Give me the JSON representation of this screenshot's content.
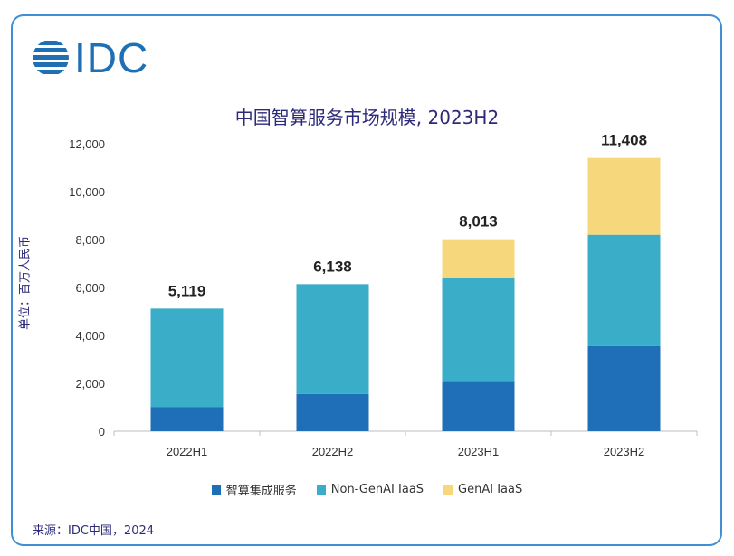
{
  "logo": {
    "text": "IDC"
  },
  "source": "来源：IDC中国，2024",
  "colors": {
    "frame": "#3f8fd2",
    "series1": "#1f6fb8",
    "series2": "#3aaec8",
    "series3": "#f6d77c",
    "title": "#2d2a7a"
  },
  "chart_data": {
    "type": "bar",
    "stacked": true,
    "title": "中国智算服务市场规模, 2023H2",
    "xlabel": "",
    "ylabel": "单位：百万人民币",
    "ylim": [
      0,
      12000
    ],
    "yticks": [
      0,
      2000,
      4000,
      6000,
      8000,
      10000,
      12000
    ],
    "ytick_labels": [
      "0",
      "2,000",
      "4,000",
      "6,000",
      "8,000",
      "10,000",
      "12,000"
    ],
    "categories": [
      "2022H1",
      "2022H2",
      "2023H1",
      "2023H2"
    ],
    "series": [
      {
        "name": "智算集成服务",
        "color": "#1f6fb8",
        "values": [
          1000,
          1550,
          2100,
          3550
        ]
      },
      {
        "name": "Non-GenAI IaaS",
        "color": "#3aaec8",
        "values": [
          4119,
          4588,
          4300,
          4650
        ]
      },
      {
        "name": "GenAI IaaS",
        "color": "#f6d77c",
        "values": [
          0,
          0,
          1613,
          3208
        ]
      }
    ],
    "totals": [
      5119,
      6138,
      8013,
      11408
    ],
    "total_labels": [
      "5,119",
      "6,138",
      "8,013",
      "11,408"
    ],
    "grid": false,
    "legend": "bottom"
  }
}
